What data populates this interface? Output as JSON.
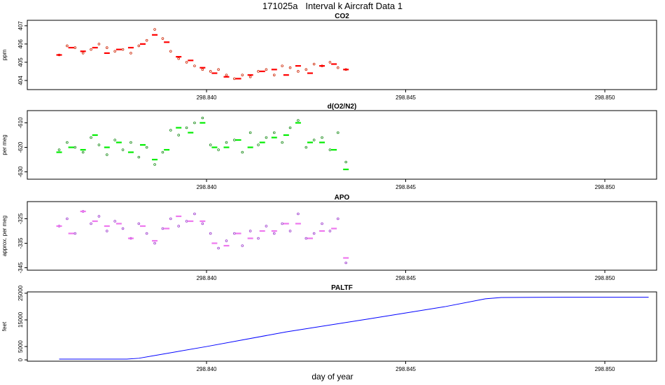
{
  "title": "171025a   Interval k Aircraft Data 1",
  "xlabel": "day of year",
  "chart_data": [
    {
      "type": "scatter",
      "title": "CO2",
      "ylabel": "ppm",
      "xlim": [
        298.8355,
        298.8513
      ],
      "ylim": [
        403.5,
        407.3
      ],
      "yticks": [
        404,
        405,
        406,
        407
      ],
      "xticks": [
        "298.840",
        "298.845",
        "298.850"
      ],
      "xtick_values": [
        298.84,
        298.845,
        298.85
      ],
      "colors": {
        "points": "#cc2200",
        "means": "#ff0000"
      },
      "series": [
        {
          "kind": "points",
          "x": [
            298.8363,
            298.8365,
            298.8367,
            298.8369,
            298.8371,
            298.8373,
            298.8375,
            298.8377,
            298.8379,
            298.8381,
            298.8383,
            298.8385,
            298.8387,
            298.8389,
            298.8391,
            298.8393,
            298.8395,
            298.8397,
            298.8399,
            298.8401,
            298.8403,
            298.8405,
            298.8407,
            298.8409,
            298.8411,
            298.8413,
            298.8415,
            298.8417,
            298.8419,
            298.8421,
            298.8423,
            298.8425,
            298.8427,
            298.8429,
            298.8431,
            298.8433,
            298.8435
          ],
          "y": [
            405.4,
            405.9,
            405.8,
            405.5,
            405.7,
            406.0,
            405.8,
            405.6,
            405.7,
            405.5,
            405.9,
            406.2,
            406.8,
            406.3,
            405.6,
            405.2,
            405.0,
            404.8,
            404.6,
            404.5,
            404.6,
            404.3,
            404.1,
            404.3,
            404.2,
            404.5,
            404.6,
            404.3,
            404.8,
            404.7,
            404.5,
            404.6,
            404.9,
            404.8,
            405.0,
            404.7,
            404.6
          ]
        },
        {
          "kind": "means",
          "x": [
            298.8363,
            298.8366,
            298.8369,
            298.8372,
            298.8375,
            298.8378,
            298.8381,
            298.8384,
            298.8387,
            298.839,
            298.8393,
            298.8396,
            298.8399,
            298.8402,
            298.8405,
            298.8408,
            298.8411,
            298.8414,
            298.8417,
            298.842,
            298.8423,
            298.8426,
            298.8429,
            298.8432,
            298.8435
          ],
          "y": [
            405.4,
            405.8,
            405.6,
            405.8,
            405.5,
            405.7,
            405.8,
            406.0,
            406.5,
            406.1,
            405.3,
            405.1,
            404.7,
            404.4,
            404.2,
            404.1,
            404.3,
            404.5,
            404.6,
            404.3,
            404.8,
            404.4,
            404.8,
            404.9,
            404.6
          ]
        }
      ]
    },
    {
      "type": "scatter",
      "title": "d(O2/N2)",
      "ylabel": "per meg",
      "xlim": [
        298.8355,
        298.8513
      ],
      "ylim": [
        -633,
        -605
      ],
      "yticks": [
        -630,
        -620,
        -610
      ],
      "xticks": [
        "298.840",
        "298.845",
        "298.850"
      ],
      "xtick_values": [
        298.84,
        298.845,
        298.85
      ],
      "colors": {
        "points": "#118811",
        "means": "#00ee00"
      },
      "series": [
        {
          "kind": "points",
          "x": [
            298.8363,
            298.8365,
            298.8367,
            298.8369,
            298.8371,
            298.8373,
            298.8375,
            298.8377,
            298.8379,
            298.8381,
            298.8383,
            298.8385,
            298.8387,
            298.8389,
            298.8391,
            298.8393,
            298.8395,
            298.8397,
            298.8399,
            298.8401,
            298.8403,
            298.8405,
            298.8407,
            298.8409,
            298.8411,
            298.8413,
            298.8415,
            298.8417,
            298.8419,
            298.8421,
            298.8423,
            298.8425,
            298.8427,
            298.8429,
            298.8431,
            298.8433,
            298.8435
          ],
          "y": [
            -621,
            -618,
            -620,
            -622,
            -616,
            -619,
            -623,
            -617,
            -621,
            -618,
            -624,
            -620,
            -627,
            -622,
            -613,
            -615,
            -612,
            -610,
            -608,
            -619,
            -621,
            -618,
            -617,
            -622,
            -614,
            -619,
            -616,
            -614,
            -618,
            -612,
            -609,
            -620,
            -617,
            -616,
            -621,
            -614,
            -626
          ]
        },
        {
          "kind": "means",
          "x": [
            298.8363,
            298.8366,
            298.8369,
            298.8372,
            298.8375,
            298.8378,
            298.8381,
            298.8384,
            298.8387,
            298.839,
            298.8393,
            298.8396,
            298.8399,
            298.8402,
            298.8405,
            298.8408,
            298.8411,
            298.8414,
            298.8417,
            298.842,
            298.8423,
            298.8426,
            298.8429,
            298.8432,
            298.8435
          ],
          "y": [
            -622,
            -620,
            -621,
            -615,
            -620,
            -618,
            -622,
            -619,
            -625,
            -621,
            -612,
            -614,
            -610,
            -620,
            -620,
            -617,
            -620,
            -618,
            -616,
            -615,
            -610,
            -618,
            -618,
            -621,
            -629
          ]
        }
      ]
    },
    {
      "type": "scatter",
      "title": "APO",
      "ylabel": "approx. per meg",
      "xlim": [
        298.8355,
        298.8513
      ],
      "ylim": [
        -346,
        -318
      ],
      "yticks": [
        -345,
        -335,
        -325
      ],
      "xticks": [
        "298.840",
        "298.845",
        "298.850"
      ],
      "xtick_values": [
        298.84,
        298.845,
        298.85
      ],
      "colors": {
        "points": "#9933cc",
        "means": "#ee77ee"
      },
      "series": [
        {
          "kind": "points",
          "x": [
            298.8363,
            298.8365,
            298.8367,
            298.8369,
            298.8371,
            298.8373,
            298.8375,
            298.8377,
            298.8379,
            298.8381,
            298.8383,
            298.8385,
            298.8387,
            298.8389,
            298.8391,
            298.8393,
            298.8395,
            298.8397,
            298.8399,
            298.8401,
            298.8403,
            298.8405,
            298.8407,
            298.8409,
            298.8411,
            298.8413,
            298.8415,
            298.8417,
            298.8419,
            298.8421,
            298.8423,
            298.8425,
            298.8427,
            298.8429,
            298.8431,
            298.8433,
            298.8435
          ],
          "y": [
            -328,
            -325,
            -331,
            -322,
            -327,
            -324,
            -330,
            -326,
            -329,
            -333,
            -327,
            -331,
            -335,
            -329,
            -325,
            -328,
            -326,
            -323,
            -327,
            -331,
            -337,
            -334,
            -331,
            -336,
            -330,
            -333,
            -328,
            -331,
            -327,
            -330,
            -323,
            -333,
            -331,
            -327,
            -330,
            -325,
            -343
          ]
        },
        {
          "kind": "means",
          "x": [
            298.8363,
            298.8366,
            298.8369,
            298.8372,
            298.8375,
            298.8378,
            298.8381,
            298.8384,
            298.8387,
            298.839,
            298.8393,
            298.8396,
            298.8399,
            298.8402,
            298.8405,
            298.8408,
            298.8411,
            298.8414,
            298.8417,
            298.842,
            298.8423,
            298.8426,
            298.8429,
            298.8432,
            298.8435
          ],
          "y": [
            -328,
            -331,
            -322,
            -326,
            -328,
            -327,
            -333,
            -328,
            -334,
            -329,
            -324,
            -326,
            -326,
            -335,
            -336,
            -331,
            -333,
            -330,
            -330,
            -327,
            -327,
            -333,
            -330,
            -329,
            -341
          ]
        }
      ]
    },
    {
      "type": "line",
      "title": "PALTF",
      "ylabel": "feet",
      "xlim": [
        298.8355,
        298.8513
      ],
      "ylim": [
        -500,
        25500
      ],
      "yticks": [
        0,
        5000,
        15000,
        25000
      ],
      "xticks": [
        "298.840",
        "298.845",
        "298.850"
      ],
      "xtick_values": [
        298.84,
        298.845,
        298.85
      ],
      "colors": {
        "line": "#0000ff"
      },
      "series": [
        {
          "kind": "line",
          "x": [
            298.8363,
            298.838,
            298.8383,
            298.84,
            298.842,
            298.844,
            298.846,
            298.847,
            298.8474,
            298.849,
            298.8511
          ],
          "y": [
            300,
            300,
            600,
            5000,
            10500,
            15200,
            20000,
            22900,
            23400,
            23500,
            23500
          ]
        }
      ]
    }
  ]
}
